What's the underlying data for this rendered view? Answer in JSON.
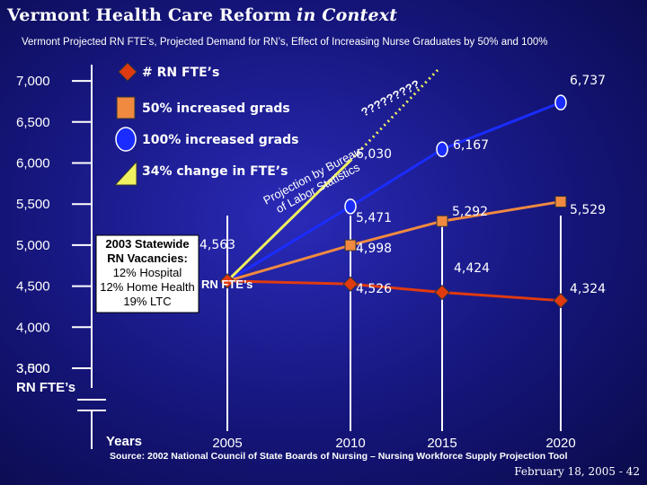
{
  "header": {
    "title_main": "Vermont Health Care Reform",
    "title_context": "in Context",
    "subtitle": "Vermont Projected RN FTE’s, Projected Demand for RN’s, Effect of Increasing Nurse Graduates by 50% and 100%"
  },
  "footer": {
    "source": "Source: 2002 National Council of State Boards of Nursing – Nursing Workforce Supply Projection Tool",
    "date": "February 18, 2005 - 42"
  },
  "annotations": {
    "projection": "Projection by Bureau of Labor Statistics",
    "question_marks": "?????????",
    "vacancy_box": [
      "2003 Statewide",
      "RN Vacancies:",
      "12% Hospital",
      "12% Home Health",
      "19% LTC"
    ],
    "rn_fte_note": "RN FTE’s"
  },
  "colors": {
    "rn_fte": "#e03a10",
    "increased_50": "#f08a40",
    "increased_100": "#1a2cff",
    "demand": "#f0f060",
    "background": "#15157a"
  },
  "chart_data": {
    "type": "line",
    "title": "Vermont Projected RN FTE’s, Projected Demand for RN’s, Effect of Increasing Nurse Graduates by 50% and 100%",
    "xlabel": "Years",
    "ylabel": "RN FTE’s",
    "x": [
      2005,
      2010,
      2015,
      2020
    ],
    "y_ticks": [
      3500,
      4000,
      4500,
      5000,
      5500,
      6000,
      6500,
      7000
    ],
    "y_tick_labels": [
      "3,500",
      "4,000",
      "4,500",
      "5,000",
      "5,500",
      "6,000",
      "6,500",
      "7,000"
    ],
    "axis_bottom_label": "3,000",
    "ylim": [
      3000,
      7000
    ],
    "legend_position": "top-left",
    "series": [
      {
        "name": "# RN FTE’s",
        "marker": "diamond",
        "color": "#e03a10",
        "x": [
          2005,
          2010,
          2015,
          2020
        ],
        "values": [
          4563,
          4526,
          4424,
          4324
        ],
        "labels": [
          "4,563",
          "4,526",
          "4,424",
          "4,324"
        ]
      },
      {
        "name": "50% increased grads",
        "marker": "square",
        "color": "#f08a40",
        "x": [
          2005,
          2010,
          2015,
          2020
        ],
        "values": [
          4563,
          4998,
          5292,
          5529
        ],
        "labels": [
          "",
          "4,998",
          "5,292",
          "5,529"
        ]
      },
      {
        "name": "100% increased grads",
        "marker": "circle",
        "color": "#1a2cff",
        "x": [
          2005,
          2010,
          2015,
          2020
        ],
        "values": [
          4563,
          5471,
          6167,
          6737
        ],
        "labels": [
          "",
          "5,471",
          "6,167",
          "6,737"
        ]
      },
      {
        "name": "34% change in FTE’s",
        "marker": "triangle",
        "color": "#f0f060",
        "x": [
          2005,
          2010
        ],
        "values": [
          4563,
          6030
        ],
        "labels": [
          "",
          "6,030"
        ]
      }
    ]
  }
}
